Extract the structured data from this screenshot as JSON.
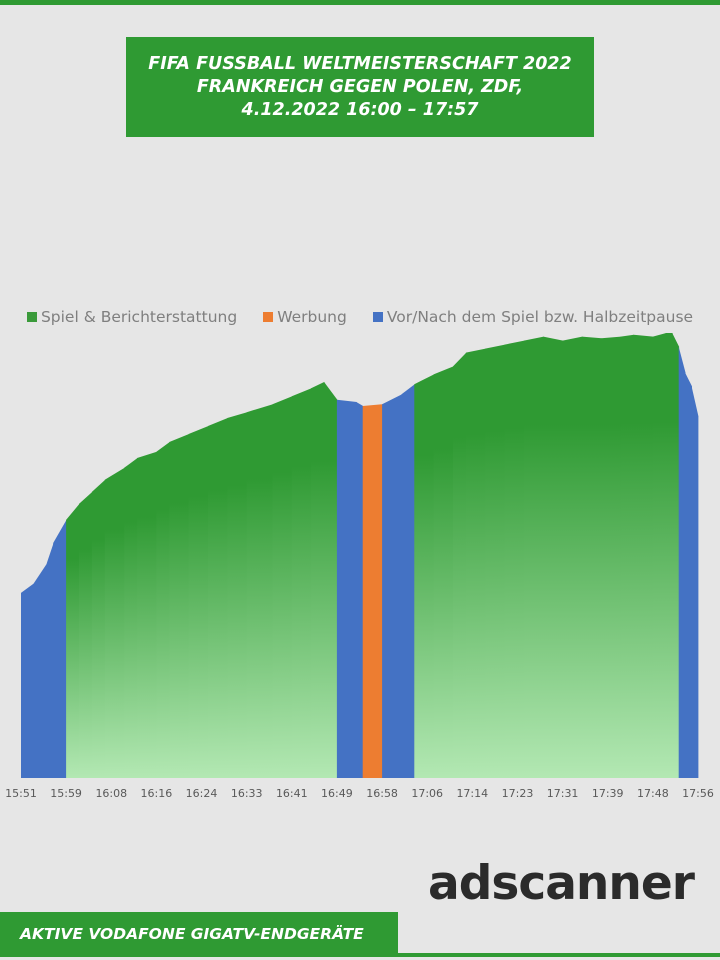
{
  "title": {
    "line1": "FIFA FUSSBALL WELTMEISTERSCHAFT 2022",
    "line2": "FRANKREICH GEGEN POLEN, ZDF,",
    "line3": "4.12.2022  16:00 – 17:57"
  },
  "footer": "AKTIVE VODAFONE GIGATV-ENDGERÄTE",
  "logo": "adscanner",
  "chart_data": {
    "type": "area",
    "legend": [
      {
        "name": "Spiel & Berichterstattung",
        "color": "#3a9a3a"
      },
      {
        "name": "Werbung",
        "color": "#ed7d31"
      },
      {
        "name": "Vor/Nach dem Spiel bzw. Halbzeitpause",
        "color": "#4472c4"
      }
    ],
    "legend_position": "top",
    "grid": false,
    "y_axis_labels": false,
    "ylim": [
      0,
      100
    ],
    "x_tick_labels": [
      "15:51",
      "15:59",
      "16:08",
      "16:16",
      "16:24",
      "16:33",
      "16:41",
      "16:49",
      "16:58",
      "17:06",
      "17:14",
      "17:23",
      "17:31",
      "17:39",
      "17:48",
      "17:56"
    ],
    "series_points": [
      {
        "t": "15:51",
        "v": 41.6,
        "s": "Vor/Nach dem Spiel bzw. Halbzeitpause"
      },
      {
        "t": "15:53",
        "v": 43.8,
        "s": "Vor/Nach dem Spiel bzw. Halbzeitpause"
      },
      {
        "t": "15:55",
        "v": 48.3,
        "s": "Vor/Nach dem Spiel bzw. Halbzeitpause"
      },
      {
        "t": "15:56",
        "v": 52.8,
        "s": "Vor/Nach dem Spiel bzw. Halbzeitpause"
      },
      {
        "t": "15:58",
        "v": 58.0,
        "s": "Spiel & Berichterstattung"
      },
      {
        "t": "16:00",
        "v": 61.6,
        "s": "Spiel & Berichterstattung"
      },
      {
        "t": "16:02",
        "v": 64.3,
        "s": "Spiel & Berichterstattung"
      },
      {
        "t": "16:04",
        "v": 67.0,
        "s": "Spiel & Berichterstattung"
      },
      {
        "t": "16:07",
        "v": 69.7,
        "s": "Spiel & Berichterstattung"
      },
      {
        "t": "16:09",
        "v": 71.9,
        "s": "Spiel & Berichterstattung"
      },
      {
        "t": "16:12",
        "v": 73.3,
        "s": "Spiel & Berichterstattung"
      },
      {
        "t": "16:14",
        "v": 75.5,
        "s": "Spiel & Berichterstattung"
      },
      {
        "t": "16:17",
        "v": 77.3,
        "s": "Spiel & Berichterstattung"
      },
      {
        "t": "16:20",
        "v": 79.1,
        "s": "Spiel & Berichterstattung"
      },
      {
        "t": "16:23",
        "v": 80.9,
        "s": "Spiel & Berichterstattung"
      },
      {
        "t": "16:26",
        "v": 82.2,
        "s": "Spiel & Berichterstattung"
      },
      {
        "t": "16:30",
        "v": 84.0,
        "s": "Spiel & Berichterstattung"
      },
      {
        "t": "16:33",
        "v": 85.8,
        "s": "Spiel & Berichterstattung"
      },
      {
        "t": "16:36",
        "v": 87.6,
        "s": "Spiel & Berichterstattung"
      },
      {
        "t": "16:38",
        "v": 89.0,
        "s": "Spiel & Berichterstattung"
      },
      {
        "t": "16:40",
        "v": 85.0,
        "s": "Vor/Nach dem Spiel bzw. Halbzeitpause"
      },
      {
        "t": "16:43",
        "v": 84.5,
        "s": "Vor/Nach dem Spiel bzw. Halbzeitpause"
      },
      {
        "t": "16:44",
        "v": 83.6,
        "s": "Werbung"
      },
      {
        "t": "16:47",
        "v": 84.0,
        "s": "Vor/Nach dem Spiel bzw. Halbzeitpause"
      },
      {
        "t": "16:50",
        "v": 86.2,
        "s": "Vor/Nach dem Spiel bzw. Halbzeitpause"
      },
      {
        "t": "16:52",
        "v": 88.5,
        "s": "Spiel & Berichterstattung"
      },
      {
        "t": "16:55",
        "v": 90.7,
        "s": "Spiel & Berichterstattung"
      },
      {
        "t": "16:58",
        "v": 92.5,
        "s": "Spiel & Berichterstattung"
      },
      {
        "t": "17:00",
        "v": 95.6,
        "s": "Spiel & Berichterstattung"
      },
      {
        "t": "17:03",
        "v": 96.5,
        "s": "Spiel & Berichterstattung"
      },
      {
        "t": "17:06",
        "v": 97.4,
        "s": "Spiel & Berichterstattung"
      },
      {
        "t": "17:09",
        "v": 98.3,
        "s": "Spiel & Berichterstattung"
      },
      {
        "t": "17:12",
        "v": 99.2,
        "s": "Spiel & Berichterstattung"
      },
      {
        "t": "17:15",
        "v": 98.3,
        "s": "Spiel & Berichterstattung"
      },
      {
        "t": "17:18",
        "v": 99.2,
        "s": "Spiel & Berichterstattung"
      },
      {
        "t": "17:21",
        "v": 98.8,
        "s": "Spiel & Berichterstattung"
      },
      {
        "t": "17:24",
        "v": 99.2,
        "s": "Spiel & Berichterstattung"
      },
      {
        "t": "17:26",
        "v": 99.6,
        "s": "Spiel & Berichterstattung"
      },
      {
        "t": "17:29",
        "v": 99.2,
        "s": "Spiel & Berichterstattung"
      },
      {
        "t": "17:31",
        "v": 100.0,
        "s": "Spiel & Berichterstattung"
      },
      {
        "t": "17:32",
        "v": 100.0,
        "s": "Spiel & Berichterstattung"
      },
      {
        "t": "17:33",
        "v": 96.9,
        "s": "Vor/Nach dem Spiel bzw. Halbzeitpause"
      },
      {
        "t": "17:34",
        "v": 91.1,
        "s": "Vor/Nach dem Spiel bzw. Halbzeitpause"
      },
      {
        "t": "17:35",
        "v": 88.0,
        "s": "Vor/Nach dem Spiel bzw. Halbzeitpause"
      },
      {
        "t": "17:36",
        "v": 81.3,
        "s": "Vor/Nach dem Spiel bzw. Halbzeitpause"
      }
    ]
  },
  "colors": {
    "brand_green": "#2f9a33",
    "program_top": "#2f9a33",
    "program_bottom": "#b3e8b3",
    "breaks": "#4472c4",
    "ads": "#ed7d31",
    "background": "#e6e6e6"
  }
}
